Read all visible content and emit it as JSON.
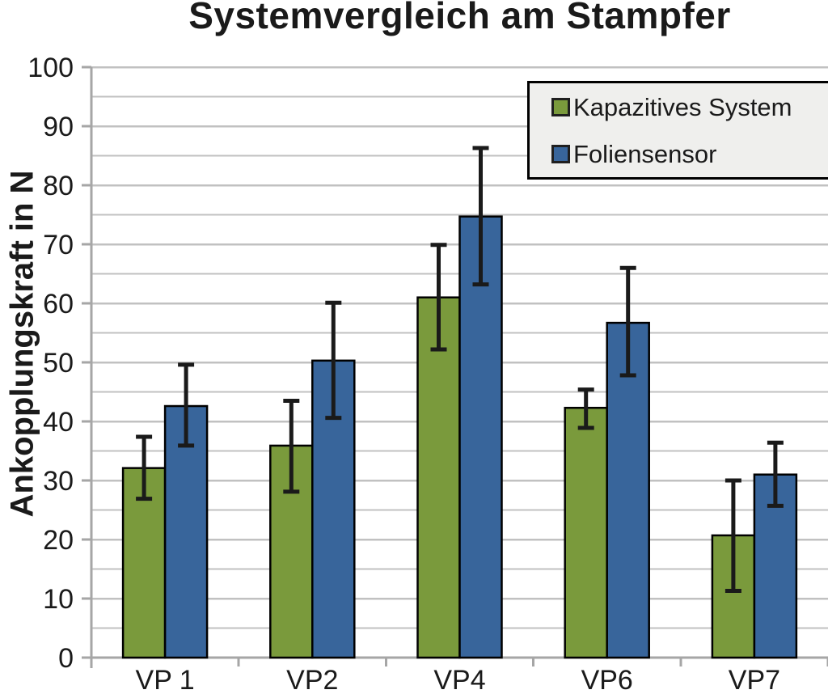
{
  "chart_data": {
    "type": "bar",
    "title": "Systemvergleich am Stampfer",
    "ylabel": "Ankopplungskraft in N",
    "xlabel": "",
    "categories": [
      "VP 1",
      "VP2",
      "VP4",
      "VP6",
      "VP7"
    ],
    "series": [
      {
        "name": "Kapazitives System",
        "color": "#7A9A3C",
        "values": [
          32.1,
          35.9,
          61.0,
          42.3,
          20.7
        ],
        "error_low": [
          26.9,
          28.1,
          52.2,
          38.9,
          11.3
        ],
        "error_high": [
          37.4,
          43.5,
          69.9,
          45.4,
          30.0
        ]
      },
      {
        "name": "Foliensensor",
        "color": "#38659B",
        "values": [
          42.6,
          50.3,
          74.7,
          56.7,
          31.0
        ],
        "error_low": [
          35.9,
          40.6,
          63.2,
          47.8,
          25.7
        ],
        "error_high": [
          49.6,
          60.1,
          86.3,
          66.0,
          36.4
        ]
      }
    ],
    "ylim": [
      0,
      100
    ],
    "ytick_step": 10,
    "grid_step": 5,
    "grid": true,
    "error_bars": true,
    "legend_position": "top-right"
  },
  "colors": {
    "background": "#FFFFFF",
    "grid": "#C1C1C1",
    "axis": "#A6A6A6",
    "bar_outline": "#000000",
    "error_bar": "#1A1A1A",
    "legend_bg": "#EFEFED",
    "legend_border": "#000000",
    "text": "#1A1A1A"
  }
}
